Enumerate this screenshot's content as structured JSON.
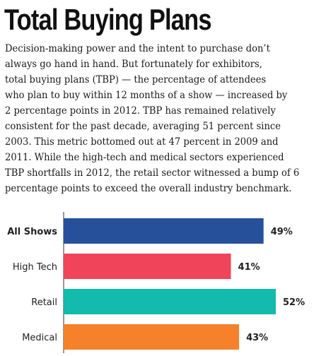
{
  "title": "Total Buying Plans",
  "body_lines": [
    "Decision-making power and the intent to purchase don’t",
    "always go hand in hand. But fortunately for exhibitors,",
    "total buying plans (TBP) — the percentage of attendees",
    "who plan to buy within 12 months of a show — increased by",
    "2 percentage points in 2012. TBP has remained relatively",
    "consistent for the past decade, averaging 51 percent since",
    "2003. This metric bottomed out at 47 percent in 2009 and",
    "2011. While the high-tech and medical sectors experienced",
    "TBP shortfalls in 2012, the retail sector witnessed a bump of 6",
    "percentage points to exceed the overall industry benchmark."
  ],
  "chart_data": {
    "type": "bar",
    "orientation": "horizontal",
    "categories": [
      "All Shows",
      "High Tech",
      "Retail",
      "Medical"
    ],
    "values": [
      49,
      41,
      52,
      43
    ],
    "value_labels": [
      "49%",
      "41%",
      "52%",
      "43%"
    ],
    "bold_categories": [
      "All Shows"
    ],
    "colors": [
      "#27509b",
      "#f0445a",
      "#12bbac",
      "#f5822a"
    ],
    "xlim": [
      0,
      52
    ],
    "grid": false
  }
}
